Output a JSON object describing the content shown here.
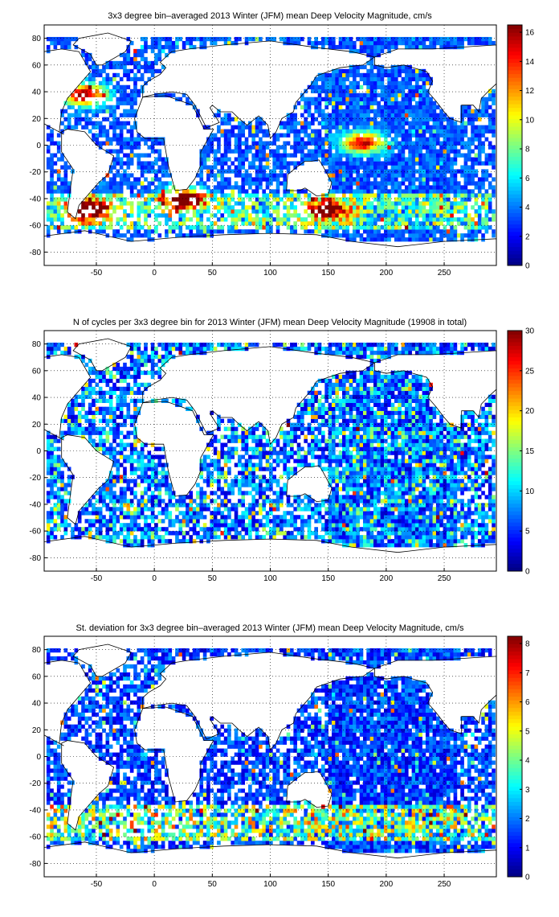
{
  "chart_data": [
    {
      "type": "heatmap",
      "title": "3x3 degree bin–averaged 2013 Winter (JFM) mean Deep Velocity Magnitude, cm/s",
      "xlim": [
        -95,
        295
      ],
      "ylim": [
        -90,
        90
      ],
      "xticks": [
        "-50",
        "0",
        "50",
        "100",
        "150",
        "200",
        "250"
      ],
      "yticks": [
        "80",
        "60",
        "40",
        "20",
        "0",
        "-20",
        "-40",
        "-60",
        "-80"
      ],
      "colorbar": {
        "min": 0,
        "max": 16.5,
        "ticks": [
          "16",
          "14",
          "12",
          "10",
          "8",
          "6",
          "4",
          "2",
          "0"
        ],
        "colormap": "jet"
      },
      "grid": true,
      "bin_size_deg": 3,
      "note_hotspots": [
        {
          "lon": -60,
          "lat": 38,
          "v": 13
        },
        {
          "lon": 25,
          "lat": -40,
          "v": 14
        },
        {
          "lon": -55,
          "lat": -48,
          "v": 15
        },
        {
          "lon": 150,
          "lat": -48,
          "v": 13
        },
        {
          "lon": 180,
          "lat": 2,
          "v": 12
        }
      ]
    },
    {
      "type": "heatmap",
      "title": "N of cycles per 3x3 degree bin for 2013 Winter (JFM) mean Deep Velocity Magnitude (19908 in total)",
      "xlim": [
        -95,
        295
      ],
      "ylim": [
        -90,
        90
      ],
      "xticks": [
        "-50",
        "0",
        "50",
        "100",
        "150",
        "200",
        "250"
      ],
      "yticks": [
        "80",
        "60",
        "40",
        "20",
        "0",
        "-20",
        "-40",
        "-60",
        "-80"
      ],
      "colorbar": {
        "min": 0,
        "max": 30,
        "ticks": [
          "30",
          "25",
          "20",
          "15",
          "10",
          "5",
          "0"
        ],
        "colormap": "jet"
      },
      "grid": true,
      "bin_size_deg": 3,
      "total_cycles": 19908
    },
    {
      "type": "heatmap",
      "title": "St. deviation for 3x3 degree bin–averaged 2013 Winter (JFM) mean Deep Velocity Magnitude, cm/s",
      "xlim": [
        -95,
        295
      ],
      "ylim": [
        -90,
        90
      ],
      "xticks": [
        "-50",
        "0",
        "50",
        "100",
        "150",
        "200",
        "250"
      ],
      "yticks": [
        "80",
        "60",
        "40",
        "20",
        "0",
        "-20",
        "-40",
        "-60",
        "-80"
      ],
      "colorbar": {
        "min": 0,
        "max": 8.25,
        "ticks": [
          "8",
          "7",
          "6",
          "5",
          "4",
          "3",
          "2",
          "1",
          "0"
        ],
        "colormap": "jet"
      },
      "grid": true,
      "bin_size_deg": 3
    }
  ]
}
